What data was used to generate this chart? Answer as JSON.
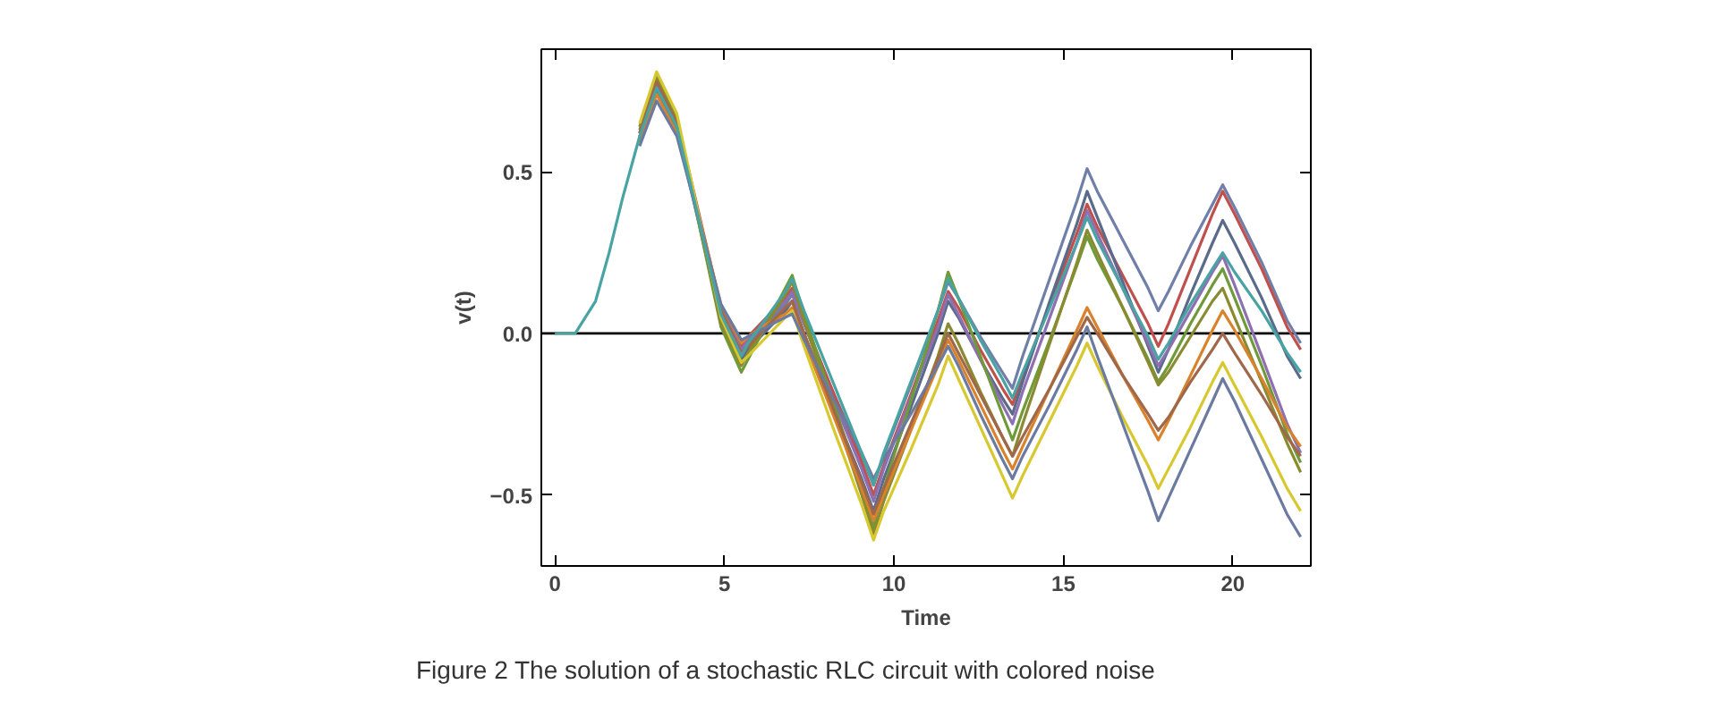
{
  "chart_data": {
    "type": "line",
    "xlabel": "Time",
    "ylabel": "v(t)",
    "x": [
      0,
      0.6,
      1.2,
      1.6,
      2,
      2.5,
      3,
      3.6,
      4.25,
      4.9,
      5.5,
      5.7,
      6.25,
      6.8,
      7,
      7.35,
      8.2,
      9.05,
      9.4,
      9.7,
      10.5,
      11.3,
      11.6,
      11.9,
      12.55,
      13.2,
      13.5,
      13.8,
      14.6,
      15.4,
      15.7,
      16,
      16.75,
      17.5,
      17.8,
      18.1,
      18.75,
      19.4,
      19.7,
      20.05,
      20.85,
      21.6,
      22
    ],
    "xlim": [
      -0.4,
      22.3
    ],
    "xticks": [
      0,
      5,
      10,
      15,
      20
    ],
    "ylim": [
      -0.72,
      0.88
    ],
    "yticks": [
      {
        "value": -0.5,
        "label": "−0.5"
      },
      {
        "value": 0,
        "label": "0.0"
      },
      {
        "value": 0.5,
        "label": "0.5"
      }
    ],
    "grid": false,
    "marker": "none",
    "line_style": "solid",
    "ref_lines": [
      {
        "axis": "y",
        "value": 0,
        "color": "#000000"
      }
    ],
    "annotations": [
      "Figure 2  The solution of a stochastic RLC circuit with colored noise"
    ],
    "series": [
      {
        "color": "#6f7fa8",
        "values": [
          null,
          null,
          null,
          null,
          null,
          0.61,
          0.76,
          0.64,
          0.35,
          0.06,
          -0.06,
          -0.03,
          0.03,
          0.09,
          0.12,
          0.03,
          -0.18,
          -0.38,
          -0.47,
          -0.38,
          -0.16,
          0.07,
          0.16,
          0.11,
          -0.01,
          -0.12,
          -0.17,
          -0.07,
          0.17,
          0.41,
          0.51,
          0.44,
          0.29,
          0.14,
          0.07,
          0.13,
          0.27,
          0.4,
          0.46,
          0.39,
          0.22,
          0.04,
          -0.03
        ]
      },
      {
        "color": "#c0504d",
        "values": [
          null,
          null,
          null,
          null,
          null,
          0.62,
          0.78,
          0.66,
          0.37,
          0.08,
          -0.04,
          -0.01,
          0.05,
          0.11,
          0.14,
          0.04,
          -0.18,
          -0.4,
          -0.5,
          -0.41,
          -0.19,
          0.04,
          0.13,
          0.08,
          -0.05,
          -0.17,
          -0.22,
          -0.13,
          0.09,
          0.31,
          0.4,
          0.33,
          0.18,
          0.03,
          -0.04,
          0.03,
          0.2,
          0.37,
          0.44,
          0.37,
          0.2,
          0.02,
          -0.05
        ]
      },
      {
        "color": "#5a6a8a",
        "values": [
          null,
          null,
          null,
          null,
          null,
          0.6,
          0.75,
          0.63,
          0.34,
          0.04,
          -0.08,
          -0.05,
          0.01,
          0.07,
          0.1,
          0,
          -0.23,
          -0.45,
          -0.55,
          -0.45,
          -0.23,
          0,
          0.1,
          0.05,
          -0.08,
          -0.2,
          -0.25,
          -0.15,
          0.1,
          0.34,
          0.44,
          0.36,
          0.16,
          -0.04,
          -0.12,
          -0.05,
          0.12,
          0.28,
          0.35,
          0.28,
          0.11,
          -0.07,
          -0.14
        ]
      },
      {
        "color": "#8e6fb0",
        "values": [
          null,
          null,
          null,
          null,
          null,
          0.62,
          0.77,
          0.65,
          0.36,
          0.07,
          -0.05,
          -0.02,
          0.04,
          0.1,
          0.13,
          0.03,
          -0.2,
          -0.42,
          -0.52,
          -0.42,
          -0.2,
          0.02,
          0.12,
          0.06,
          -0.08,
          -0.22,
          -0.28,
          -0.18,
          0.05,
          0.28,
          0.38,
          0.31,
          0.14,
          -0.03,
          -0.1,
          -0.05,
          0.07,
          0.19,
          0.24,
          0.15,
          -0.07,
          -0.28,
          -0.37
        ]
      },
      {
        "color": "#6f9a3a",
        "values": [
          null,
          null,
          null,
          null,
          null,
          0.64,
          0.8,
          0.66,
          0.34,
          0.02,
          -0.12,
          -0.08,
          0.03,
          0.14,
          0.18,
          0.06,
          -0.21,
          -0.48,
          -0.6,
          -0.48,
          -0.21,
          0.07,
          0.19,
          0.11,
          -0.07,
          -0.25,
          -0.33,
          -0.24,
          -0.02,
          0.21,
          0.3,
          0.23,
          0.08,
          -0.08,
          -0.15,
          -0.1,
          0.03,
          0.15,
          0.2,
          0.11,
          -0.1,
          -0.31,
          -0.4
        ]
      },
      {
        "color": "#8a8a30",
        "values": [
          null,
          null,
          null,
          null,
          null,
          0.63,
          0.79,
          0.66,
          0.35,
          0.03,
          -0.1,
          -0.06,
          0.03,
          0.12,
          0.16,
          0.04,
          -0.23,
          -0.5,
          -0.62,
          -0.52,
          -0.3,
          -0.07,
          0.03,
          -0.03,
          -0.18,
          -0.32,
          -0.38,
          -0.28,
          -0.03,
          0.22,
          0.32,
          0.25,
          0.08,
          -0.09,
          -0.16,
          -0.12,
          -0.01,
          0.1,
          0.14,
          0.05,
          -0.15,
          -0.34,
          -0.43
        ]
      },
      {
        "color": "#d9822b",
        "values": [
          null,
          null,
          null,
          null,
          null,
          0.59,
          0.74,
          0.62,
          0.36,
          0.09,
          -0.03,
          -0.01,
          0.03,
          0.06,
          0.08,
          -0.02,
          -0.25,
          -0.48,
          -0.58,
          -0.5,
          -0.3,
          -0.1,
          -0.02,
          -0.08,
          -0.22,
          -0.36,
          -0.42,
          -0.35,
          -0.17,
          0.01,
          0.08,
          0.02,
          -0.13,
          -0.27,
          -0.33,
          -0.27,
          -0.13,
          0.01,
          0.07,
          0.01,
          -0.14,
          -0.29,
          -0.35
        ]
      },
      {
        "color": "#a0684a",
        "values": [
          null,
          null,
          null,
          null,
          null,
          0.62,
          0.78,
          0.65,
          0.36,
          0.07,
          -0.06,
          -0.04,
          0.02,
          0.08,
          0.1,
          0,
          -0.23,
          -0.46,
          -0.56,
          -0.48,
          -0.28,
          -0.08,
          0,
          -0.06,
          -0.19,
          -0.32,
          -0.38,
          -0.32,
          -0.17,
          -0.01,
          0.05,
          0,
          -0.13,
          -0.25,
          -0.3,
          -0.26,
          -0.15,
          -0.05,
          0,
          -0.06,
          -0.19,
          -0.32,
          -0.38
        ]
      },
      {
        "color": "#d8c830",
        "values": [
          null,
          null,
          null,
          null,
          null,
          0.65,
          0.81,
          0.68,
          0.36,
          0.05,
          -0.09,
          -0.07,
          -0.01,
          0.05,
          0.07,
          -0.04,
          -0.29,
          -0.53,
          -0.64,
          -0.55,
          -0.36,
          -0.16,
          -0.07,
          -0.14,
          -0.29,
          -0.44,
          -0.51,
          -0.44,
          -0.27,
          -0.1,
          -0.03,
          -0.1,
          -0.26,
          -0.41,
          -0.48,
          -0.42,
          -0.29,
          -0.15,
          -0.09,
          -0.16,
          -0.32,
          -0.48,
          -0.55
        ]
      },
      {
        "color": "#6a7aa0",
        "values": [
          null,
          null,
          null,
          null,
          null,
          0.58,
          0.72,
          0.61,
          0.35,
          0.09,
          -0.02,
          -0.01,
          0.02,
          0.05,
          0.06,
          -0.02,
          -0.2,
          -0.37,
          -0.45,
          -0.39,
          -0.25,
          -0.1,
          -0.04,
          -0.1,
          -0.25,
          -0.39,
          -0.45,
          -0.38,
          -0.22,
          -0.05,
          0.02,
          -0.07,
          -0.28,
          -0.49,
          -0.58,
          -0.51,
          -0.36,
          -0.21,
          -0.14,
          -0.21,
          -0.39,
          -0.56,
          -0.63
        ]
      },
      {
        "color": "#4aa3a3",
        "values": [
          0,
          0,
          0.1,
          0.25,
          0.42,
          0.61,
          0.76,
          0.64,
          0.35,
          0.06,
          -0.07,
          -0.03,
          0.05,
          0.13,
          0.17,
          0.07,
          -0.15,
          -0.37,
          -0.47,
          -0.37,
          -0.15,
          0.07,
          0.17,
          0.11,
          -0.02,
          -0.14,
          -0.2,
          -0.12,
          0.08,
          0.28,
          0.36,
          0.29,
          0.14,
          -0.01,
          -0.08,
          -0.03,
          0.09,
          0.2,
          0.25,
          0.19,
          0.07,
          -0.06,
          -0.12
        ]
      }
    ]
  }
}
